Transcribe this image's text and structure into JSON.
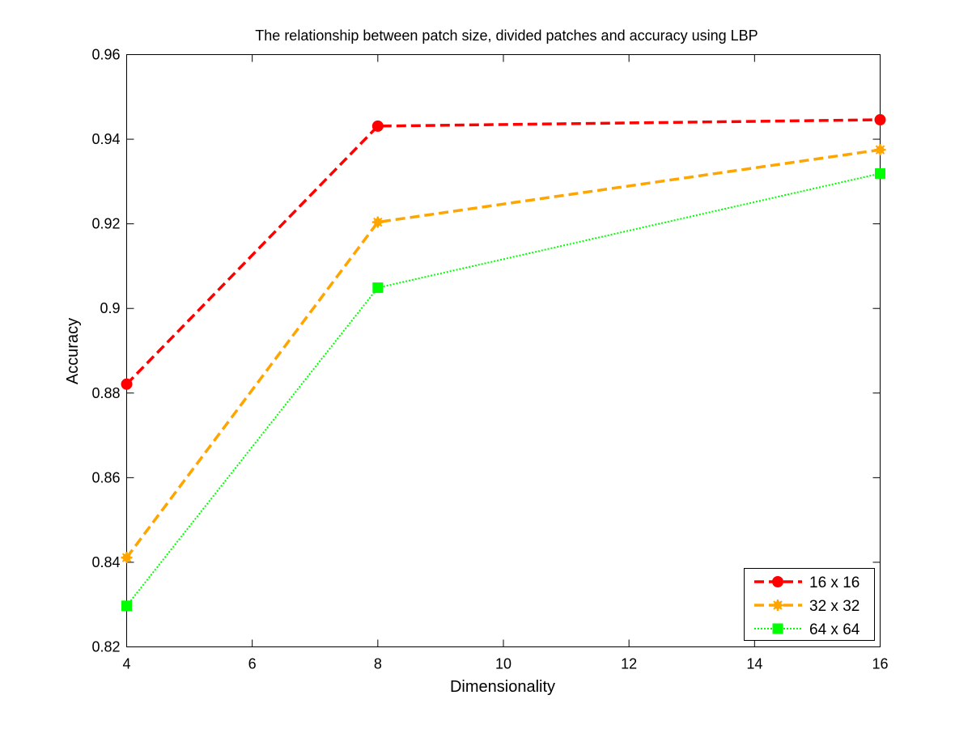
{
  "chart_data": {
    "type": "line",
    "title": "The relationship between patch size, divided patches and accuracy using LBP",
    "xlabel": "Dimensionality",
    "ylabel": "Accuracy",
    "xlim": [
      4,
      16
    ],
    "ylim": [
      0.82,
      0.96
    ],
    "xticks": [
      4,
      6,
      8,
      10,
      12,
      14,
      16
    ],
    "yticks": [
      0.82,
      0.84,
      0.86,
      0.88,
      0.9,
      0.92,
      0.94,
      0.96
    ],
    "xtick_labels": [
      "4",
      "6",
      "8",
      "10",
      "12",
      "14",
      "16"
    ],
    "ytick_labels": [
      "0.82",
      "0.84",
      "0.86",
      "0.88",
      "0.9",
      "0.92",
      "0.94",
      "0.96"
    ],
    "grid": false,
    "legend_position": "bottom-right",
    "series": [
      {
        "name": "16 x 16",
        "x": [
          4,
          8,
          16
        ],
        "y": [
          0.8821,
          0.9431,
          0.9446
        ],
        "color": "#ff0000",
        "line_style": "dashed",
        "marker": "circle"
      },
      {
        "name": "32 x 32",
        "x": [
          4,
          8,
          16
        ],
        "y": [
          0.8411,
          0.9204,
          0.9375
        ],
        "color": "#ffa500",
        "line_style": "dashed",
        "marker": "asterisk"
      },
      {
        "name": "64 x 64",
        "x": [
          4,
          8,
          16
        ],
        "y": [
          0.8297,
          0.9049,
          0.9319
        ],
        "color": "#00ff00",
        "line_style": "dotted",
        "marker": "square"
      }
    ]
  }
}
